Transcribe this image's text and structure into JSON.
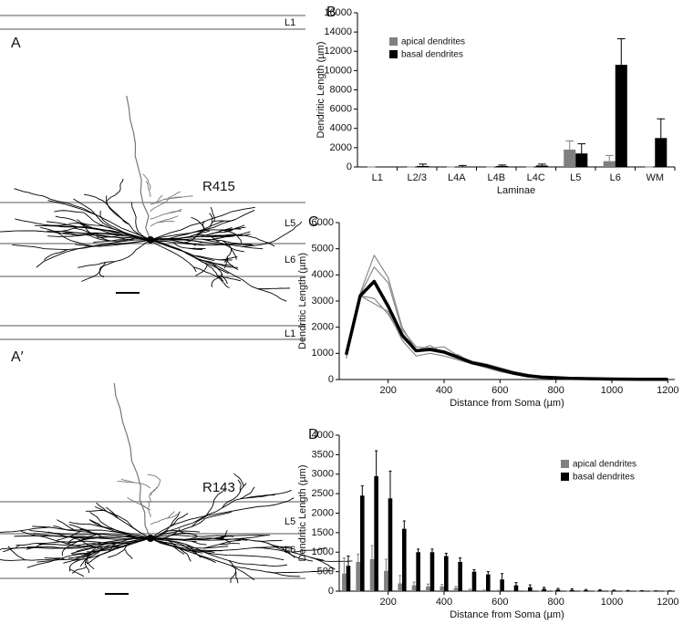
{
  "figure": {
    "panels": [
      {
        "letter": "A",
        "cell": "R415",
        "layers": [
          "L1",
          "L5",
          "L6"
        ]
      },
      {
        "letter": "A′",
        "cell": "R143",
        "layers": [
          "L1",
          "L5",
          "L6"
        ]
      }
    ]
  },
  "chart_data": [
    {
      "type": "bar",
      "panel": "B",
      "x_label": "Laminae",
      "y_label": "Dendritic Length (µm)",
      "categories": [
        "L1",
        "L2/3",
        "L4A",
        "L4B",
        "L4C",
        "L5",
        "L6",
        "WM"
      ],
      "series": [
        {
          "name": "apical dendrites",
          "color": "#808080",
          "values": [
            0,
            0,
            0,
            0,
            0,
            1800,
            600,
            0
          ],
          "errors": [
            0,
            0,
            0,
            0,
            0,
            900,
            600,
            0
          ]
        },
        {
          "name": "basal dendrites",
          "color": "#000000",
          "values": [
            0,
            100,
            50,
            100,
            150,
            1400,
            10600,
            3000
          ],
          "errors": [
            0,
            200,
            100,
            100,
            150,
            1000,
            2700,
            2000
          ]
        }
      ],
      "ylim": [
        0,
        16000
      ],
      "yticks": [
        0,
        2000,
        4000,
        6000,
        8000,
        10000,
        12000,
        14000,
        16000
      ],
      "legend": "upper left"
    },
    {
      "type": "line",
      "panel": "C",
      "x_label": "Distance from Soma (µm)",
      "y_label": "Dendritic Length (µm)",
      "x": [
        50,
        100,
        150,
        200,
        250,
        300,
        350,
        400,
        450,
        500,
        550,
        600,
        650,
        700,
        750,
        800,
        850,
        900,
        950,
        1000,
        1050,
        1100,
        1150,
        1200
      ],
      "series": [
        {
          "color": "#8a8a8a",
          "linewidth": 1.2,
          "values": [
            800,
            3300,
            4750,
            3900,
            2000,
            1100,
            1300,
            1000,
            800,
            600,
            500,
            350,
            200,
            120,
            80,
            60,
            40,
            30,
            25,
            20,
            15,
            10,
            10,
            10
          ]
        },
        {
          "color": "#8a8a8a",
          "linewidth": 1.2,
          "values": [
            1000,
            3200,
            3100,
            2500,
            1600,
            1100,
            1100,
            1000,
            950,
            650,
            550,
            400,
            250,
            150,
            100,
            80,
            50,
            40,
            30,
            20,
            15,
            10,
            10,
            10
          ]
        },
        {
          "color": "#8a8a8a",
          "linewidth": 1.2,
          "values": [
            1000,
            3250,
            4300,
            3700,
            1900,
            1250,
            1200,
            1250,
            900,
            700,
            600,
            450,
            300,
            200,
            120,
            90,
            60,
            40,
            30,
            20,
            15,
            10,
            10,
            10
          ]
        },
        {
          "color": "#8a8a8a",
          "linewidth": 1.2,
          "values": [
            900,
            3200,
            2900,
            2600,
            1500,
            900,
            1000,
            900,
            750,
            600,
            450,
            300,
            200,
            100,
            70,
            50,
            40,
            30,
            20,
            15,
            10,
            10,
            10,
            10
          ]
        },
        {
          "color": "#000000",
          "linewidth": 3.5,
          "values": [
            950,
            3200,
            3750,
            2800,
            1700,
            1100,
            1150,
            1050,
            850,
            640,
            530,
            380,
            240,
            140,
            90,
            70,
            45,
            35,
            26,
            19,
            14,
            10,
            10,
            10
          ]
        }
      ],
      "xlim": [
        25,
        1225
      ],
      "xticks": [
        200,
        400,
        600,
        800,
        1000,
        1200
      ],
      "ylim": [
        0,
        6000
      ],
      "yticks": [
        0,
        1000,
        2000,
        3000,
        4000,
        5000,
        6000
      ]
    },
    {
      "type": "bar",
      "panel": "D",
      "x_label": "Distance from Soma (µm)",
      "y_label": "Dendritic Length (µm)",
      "x": [
        50,
        100,
        150,
        200,
        250,
        300,
        350,
        400,
        450,
        500,
        550,
        600,
        650,
        700,
        750,
        800,
        850,
        900,
        950,
        1000,
        1050,
        1100,
        1150,
        1200
      ],
      "series": [
        {
          "name": "apical dendrites",
          "color": "#808080",
          "values": [
            450,
            750,
            820,
            520,
            200,
            150,
            120,
            120,
            80,
            30,
            20,
            10,
            5,
            5,
            3,
            2,
            2,
            1,
            1,
            1,
            1,
            1,
            1,
            1
          ],
          "errors": [
            400,
            200,
            350,
            300,
            200,
            80,
            60,
            50,
            40,
            20,
            10,
            10,
            5,
            5,
            3,
            2,
            2,
            1,
            1,
            1,
            1,
            1,
            1,
            1
          ]
        },
        {
          "name": "basal dendrites",
          "color": "#000000",
          "values": [
            650,
            2450,
            2950,
            2380,
            1600,
            1000,
            1000,
            900,
            750,
            500,
            430,
            300,
            150,
            100,
            60,
            40,
            30,
            25,
            20,
            15,
            10,
            8,
            5,
            5
          ],
          "errors": [
            250,
            250,
            650,
            700,
            200,
            80,
            80,
            70,
            100,
            50,
            70,
            150,
            70,
            60,
            40,
            30,
            30,
            20,
            15,
            10,
            8,
            6,
            4,
            4
          ]
        }
      ],
      "xlim": [
        25,
        1225
      ],
      "xticks": [
        200,
        400,
        600,
        800,
        1000,
        1200
      ],
      "ylim": [
        0,
        4000
      ],
      "yticks": [
        0,
        500,
        1000,
        1500,
        2000,
        2500,
        3000,
        3500,
        4000
      ],
      "legend": "upper right"
    }
  ]
}
